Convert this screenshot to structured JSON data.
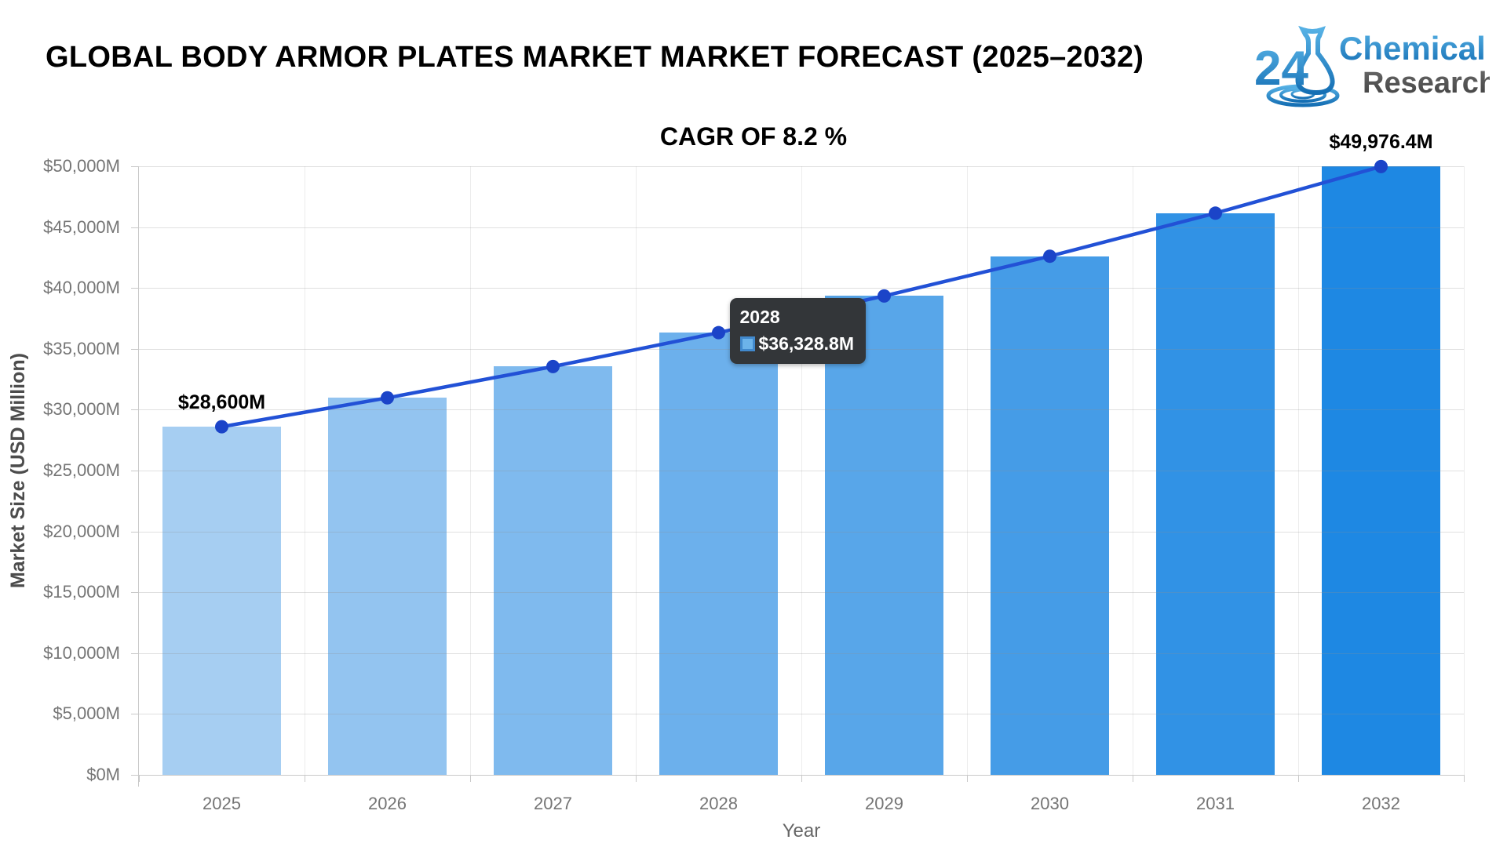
{
  "header": {
    "title": "GLOBAL BODY ARMOR PLATES MARKET MARKET FORECAST (2025–2032)",
    "subtitle": "CAGR OF 8.2 %"
  },
  "logo": {
    "number": "24",
    "word1": "Chemical",
    "word2": "Research",
    "blue": "#2b8fd2",
    "dark": "#4a4a4a"
  },
  "chart_data": {
    "type": "bar",
    "title": "GLOBAL BODY ARMOR PLATES MARKET MARKET FORECAST (2025–2032)",
    "subtitle": "CAGR OF 8.2 %",
    "xlabel": "Year",
    "ylabel": "Market Size (USD Million)",
    "categories": [
      "2025",
      "2026",
      "2027",
      "2028",
      "2029",
      "2030",
      "2031",
      "2032"
    ],
    "series": [
      {
        "name": "Market Size (USD Million)",
        "type": "bar",
        "values": [
          28600,
          30973.8,
          33544.6,
          36328.8,
          39344.1,
          42609.6,
          46146.2,
          49976.4
        ],
        "bar_colors": [
          "#a6cef2",
          "#93c4f0",
          "#7fbaee",
          "#6cb0ec",
          "#58a6e9",
          "#459ce7",
          "#3192e5",
          "#1e88e3"
        ]
      },
      {
        "name": "Trend",
        "type": "line",
        "values": [
          28600,
          30973.8,
          33544.6,
          36328.8,
          39344.1,
          42609.6,
          46146.2,
          49976.4
        ],
        "line_color": "#2251d6",
        "marker_color": "#1b44c8"
      }
    ],
    "ylim": [
      0,
      50000
    ],
    "grid": true,
    "legend": "none",
    "yticks": {
      "values": [
        0,
        5000,
        10000,
        15000,
        20000,
        25000,
        30000,
        35000,
        40000,
        45000,
        50000
      ],
      "labels": [
        "$0M",
        "$5,000M",
        "$10,000M",
        "$15,000M",
        "$20,000M",
        "$25,000M",
        "$30,000M",
        "$35,000M",
        "$40,000M",
        "$45,000M",
        "$50,000M"
      ]
    },
    "annotations": [
      {
        "category": "2025",
        "text": "$28,600M"
      },
      {
        "category": "2032",
        "text": "$49,976.4M"
      }
    ],
    "tooltip": {
      "title": "2028",
      "value": "$36,328.8M",
      "anchor_category": "2028"
    }
  }
}
